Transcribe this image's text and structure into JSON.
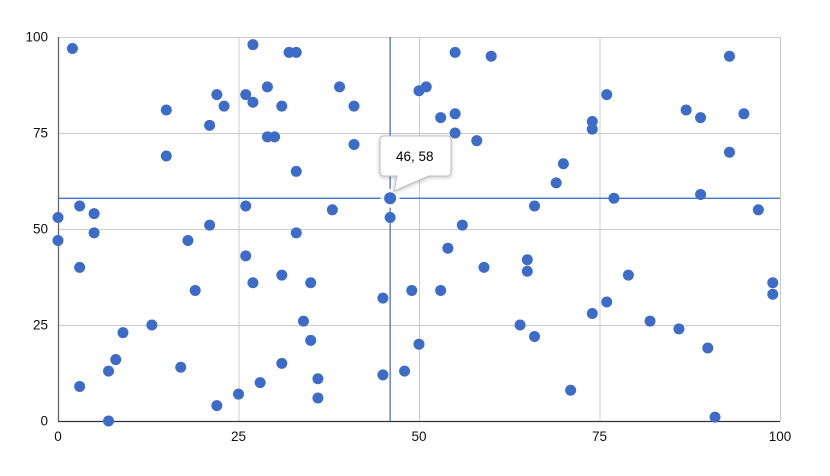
{
  "chart_data": {
    "type": "scatter",
    "title": "",
    "xlabel": "",
    "ylabel": "",
    "xlim": [
      0,
      100
    ],
    "ylim": [
      0,
      100
    ],
    "x_ticks": [
      "0",
      "25",
      "50",
      "75",
      "100"
    ],
    "y_ticks": [
      "0",
      "25",
      "50",
      "75",
      "100"
    ],
    "grid": true,
    "legend": "none",
    "series": [
      {
        "name": "points",
        "color": "#3D6CC8",
        "points": [
          [
            2,
            97
          ],
          [
            27,
            98
          ],
          [
            32,
            96
          ],
          [
            33,
            96
          ],
          [
            55,
            96
          ],
          [
            60,
            95
          ],
          [
            93,
            95
          ],
          [
            22,
            85
          ],
          [
            26,
            85
          ],
          [
            29,
            87
          ],
          [
            27,
            83
          ],
          [
            31,
            82
          ],
          [
            23,
            82
          ],
          [
            39,
            87
          ],
          [
            41,
            82
          ],
          [
            15,
            81
          ],
          [
            50,
            86
          ],
          [
            51,
            87
          ],
          [
            76,
            85
          ],
          [
            21,
            77
          ],
          [
            29,
            74
          ],
          [
            30,
            74
          ],
          [
            41,
            72
          ],
          [
            15,
            69
          ],
          [
            53,
            79
          ],
          [
            55,
            80
          ],
          [
            87,
            81
          ],
          [
            89,
            79
          ],
          [
            95,
            80
          ],
          [
            55,
            75
          ],
          [
            58,
            73
          ],
          [
            74,
            78
          ],
          [
            74,
            76
          ],
          [
            93,
            70
          ],
          [
            33,
            65
          ],
          [
            70,
            67
          ],
          [
            69,
            62
          ],
          [
            77,
            58
          ],
          [
            89,
            59
          ],
          [
            3,
            56
          ],
          [
            5,
            54
          ],
          [
            26,
            56
          ],
          [
            38,
            55
          ],
          [
            56,
            51
          ],
          [
            66,
            56
          ],
          [
            97,
            55
          ],
          [
            0,
            53
          ],
          [
            46,
            53
          ],
          [
            21,
            51
          ],
          [
            5,
            49
          ],
          [
            33,
            49
          ],
          [
            0,
            47
          ],
          [
            18,
            47
          ],
          [
            26,
            43
          ],
          [
            54,
            45
          ],
          [
            3,
            40
          ],
          [
            59,
            40
          ],
          [
            65,
            42
          ],
          [
            65,
            39
          ],
          [
            31,
            38
          ],
          [
            27,
            36
          ],
          [
            35,
            36
          ],
          [
            19,
            34
          ],
          [
            45,
            32
          ],
          [
            49,
            34
          ],
          [
            53,
            34
          ],
          [
            79,
            38
          ],
          [
            99,
            36
          ],
          [
            99,
            33
          ],
          [
            76,
            31
          ],
          [
            74,
            28
          ],
          [
            34,
            26
          ],
          [
            13,
            25
          ],
          [
            64,
            25
          ],
          [
            82,
            26
          ],
          [
            9,
            23
          ],
          [
            35,
            21
          ],
          [
            66,
            22
          ],
          [
            86,
            24
          ],
          [
            50,
            20
          ],
          [
            90,
            19
          ],
          [
            8,
            16
          ],
          [
            7,
            13
          ],
          [
            17,
            14
          ],
          [
            31,
            15
          ],
          [
            45,
            12
          ],
          [
            48,
            13
          ],
          [
            3,
            9
          ],
          [
            28,
            10
          ],
          [
            36,
            11
          ],
          [
            36,
            6
          ],
          [
            25,
            7
          ],
          [
            22,
            4
          ],
          [
            71,
            8
          ],
          [
            7,
            0
          ],
          [
            91,
            1
          ]
        ]
      }
    ],
    "selected_point": {
      "x": 46,
      "y": 58
    },
    "crosshair": {
      "x": 46,
      "y": 58,
      "color": "#3366CC"
    },
    "tooltip": {
      "label": "46, 58"
    }
  },
  "colors": {
    "background": "#ffffff",
    "gridline": "#cccccc",
    "x_baseline": "#333333",
    "y_baseline": "#666666",
    "point": "#3D6CC8",
    "crosshair": "#3366CC",
    "tooltip_bg": "#ffffff",
    "tooltip_border": "#c0c0c0",
    "tick_text": "#111111"
  }
}
